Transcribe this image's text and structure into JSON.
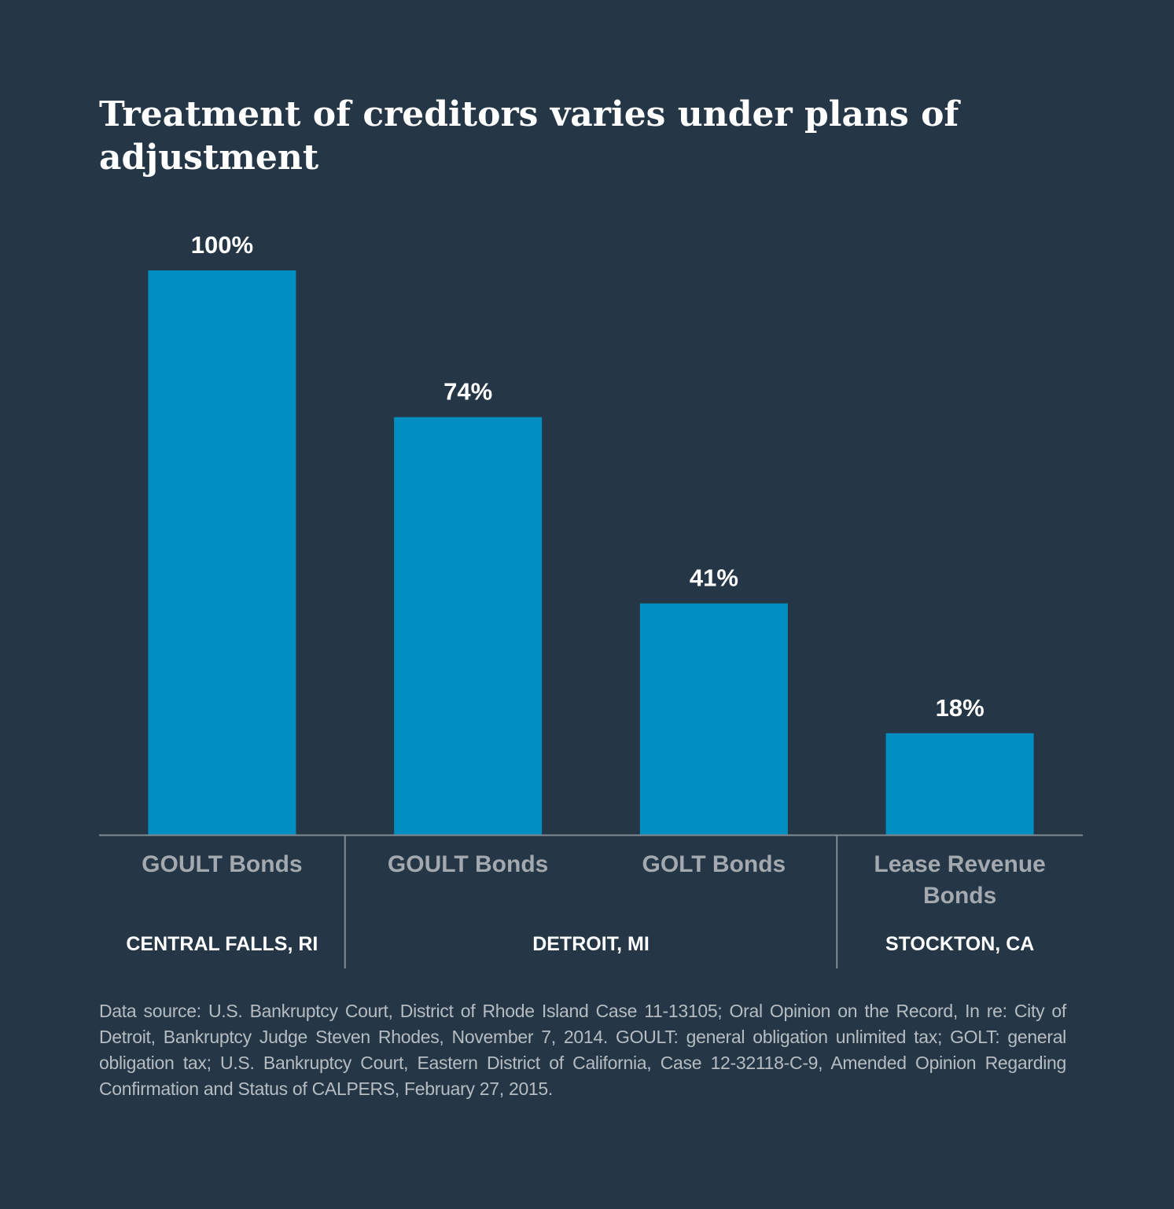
{
  "title": "Treatment of creditors varies under plans of adjustment",
  "colors": {
    "background": "#253746",
    "bar": "#008fc0",
    "axis": "#7f8a93",
    "category_text": "#a3a9ae",
    "group_text": "#ffffff"
  },
  "chart_data": {
    "type": "bar",
    "title": "Treatment of creditors varies under plans of adjustment",
    "categories": [
      "GOULT Bonds",
      "GOULT Bonds",
      "GOLT Bonds",
      "Lease Revenue Bonds"
    ],
    "values": [
      100,
      74,
      41,
      18
    ],
    "value_labels": [
      "100%",
      "74%",
      "41%",
      "18%"
    ],
    "groups": [
      {
        "label": "CENTRAL FALLS, RI",
        "categories": [
          0
        ]
      },
      {
        "label": "DETROIT, MI",
        "categories": [
          1,
          2
        ]
      },
      {
        "label": "STOCKTON, CA",
        "categories": [
          3
        ]
      }
    ],
    "ylim": [
      0,
      100
    ],
    "grid": false,
    "legend": "none"
  },
  "source": "Data source: U.S. Bankruptcy Court, District of Rhode Island Case 11-13105; Oral Opinion on the Record, In re: City of Detroit, Bankruptcy Judge Steven Rhodes, November 7, 2014. GOULT: general obligation unlimited tax; GOLT: general obligation tax; U.S. Bankruptcy Court, Eastern District of California, Case 12-32118-C-9, Amended Opinion Regarding Confirmation and Status of CALPERS, February 27, 2015."
}
